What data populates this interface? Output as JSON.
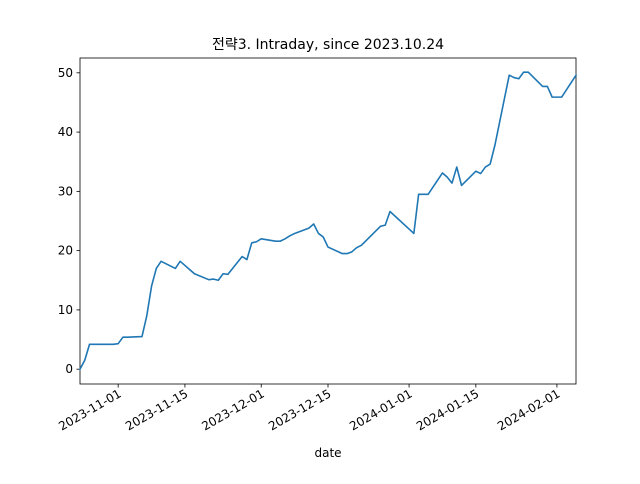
{
  "chart_data": {
    "type": "line",
    "title": "전략3. Intraday, since 2023.10.24",
    "xlabel": "date",
    "ylabel": "",
    "xlim": [
      "2023-10-24",
      "2024-02-05"
    ],
    "ylim": [
      -2.5,
      52.5
    ],
    "grid": false,
    "x_tick_labels": [
      "2023-11-01",
      "2023-11-15",
      "2023-12-01",
      "2023-12-15",
      "2024-01-01",
      "2024-01-15",
      "2024-02-01"
    ],
    "y_ticks": [
      0,
      10,
      20,
      30,
      40,
      50
    ],
    "series_color": "#1f77b4",
    "series": [
      {
        "x": [
          "2023-10-24",
          "2023-10-25",
          "2023-10-26",
          "2023-10-27",
          "2023-10-30",
          "2023-10-31",
          "2023-11-01",
          "2023-11-02",
          "2023-11-03",
          "2023-11-06",
          "2023-11-07",
          "2023-11-08",
          "2023-11-09",
          "2023-11-10",
          "2023-11-13",
          "2023-11-14",
          "2023-11-15",
          "2023-11-16",
          "2023-11-17",
          "2023-11-20",
          "2023-11-21",
          "2023-11-22",
          "2023-11-23",
          "2023-11-24",
          "2023-11-27",
          "2023-11-28",
          "2023-11-29",
          "2023-11-30",
          "2023-12-01",
          "2023-12-04",
          "2023-12-05",
          "2023-12-06",
          "2023-12-07",
          "2023-12-08",
          "2023-12-11",
          "2023-12-12",
          "2023-12-13",
          "2023-12-14",
          "2023-12-15",
          "2023-12-18",
          "2023-12-19",
          "2023-12-20",
          "2023-12-21",
          "2023-12-22",
          "2023-12-26",
          "2023-12-27",
          "2023-12-28",
          "2024-01-02",
          "2024-01-03",
          "2024-01-04",
          "2024-01-05",
          "2024-01-08",
          "2024-01-09",
          "2024-01-10",
          "2024-01-11",
          "2024-01-12",
          "2024-01-15",
          "2024-01-16",
          "2024-01-17",
          "2024-01-18",
          "2024-01-19",
          "2024-01-22",
          "2024-01-23",
          "2024-01-24",
          "2024-01-25",
          "2024-01-26",
          "2024-01-29",
          "2024-01-30",
          "2024-01-31",
          "2024-02-01",
          "2024-02-02",
          "2024-02-05"
        ],
        "values": [
          0,
          1.5,
          4.2,
          4.2,
          4.2,
          4.2,
          4.3,
          5.4,
          5.4,
          5.5,
          9.0,
          14.0,
          17.0,
          18.2,
          17.0,
          18.2,
          17.5,
          16.8,
          16.1,
          15.1,
          15.2,
          15.0,
          16.1,
          16.0,
          19.0,
          18.5,
          21.3,
          21.5,
          22.0,
          21.6,
          21.6,
          22.0,
          22.5,
          22.9,
          23.8,
          24.5,
          22.9,
          22.3,
          20.6,
          19.5,
          19.5,
          19.8,
          20.5,
          20.9,
          24.1,
          24.3,
          26.6,
          22.9,
          29.5,
          29.5,
          29.5,
          33.1,
          32.4,
          31.4,
          34.1,
          31.0,
          33.4,
          33.0,
          34.1,
          34.6,
          37.8,
          49.6,
          49.2,
          49.0,
          50.1,
          50.1,
          47.7,
          47.7,
          45.9,
          45.9,
          45.9,
          49.6
        ]
      }
    ]
  }
}
